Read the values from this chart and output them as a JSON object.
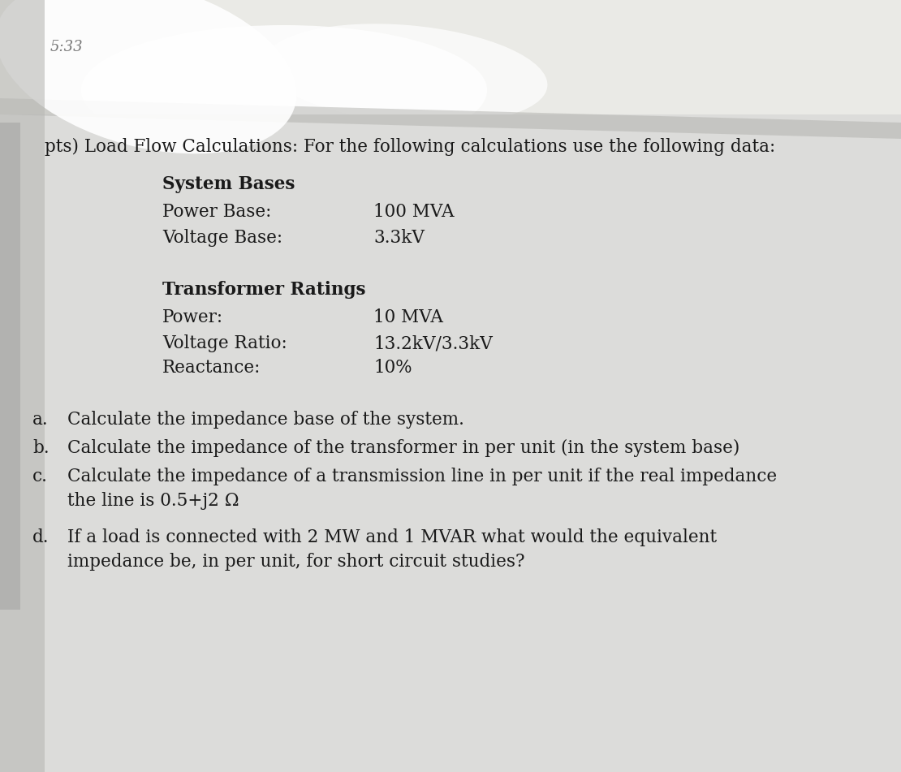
{
  "bg_color": "#c8c8c4",
  "paper_color": "#e8e8e4",
  "paper_light": "#f2f2ee",
  "brown_color": "#5a2d0c",
  "text_color": "#1a1a1a",
  "gray_text": "#666666",
  "header_line1": "pts) Load Flow Calculations: For the following calculations use the following data:",
  "section1_title": "System Bases",
  "section1_label1": "Power Base:",
  "section1_val1": "100 MVA",
  "section1_label2": "Voltage Base:",
  "section1_val2": "3.3kV",
  "section2_title": "Transformer Ratings",
  "section2_label1": "Power:",
  "section2_val1": "10 MVA",
  "section2_label2": "Voltage Ratio:",
  "section2_val2": "13.2kV/3.3kV",
  "section2_label3": "Reactance:",
  "section2_val3": "10%",
  "q_a": "Calculate the impedance base of the system.",
  "q_b": "Calculate the impedance of the transformer in per unit (in the system base)",
  "q_c1": "Calculate the impedance of a transmission line in per unit if the real impedance",
  "q_c2": "the line is 0.5+j2 Ω",
  "q_d1": "If a load is connected with 2 MW and 1 MVAR what would the equivalent",
  "q_d2": "impedance be, in per unit, for short circuit studies?",
  "corner_text": "5:33",
  "figsize": [
    11.1,
    9.51
  ],
  "dpi": 100
}
